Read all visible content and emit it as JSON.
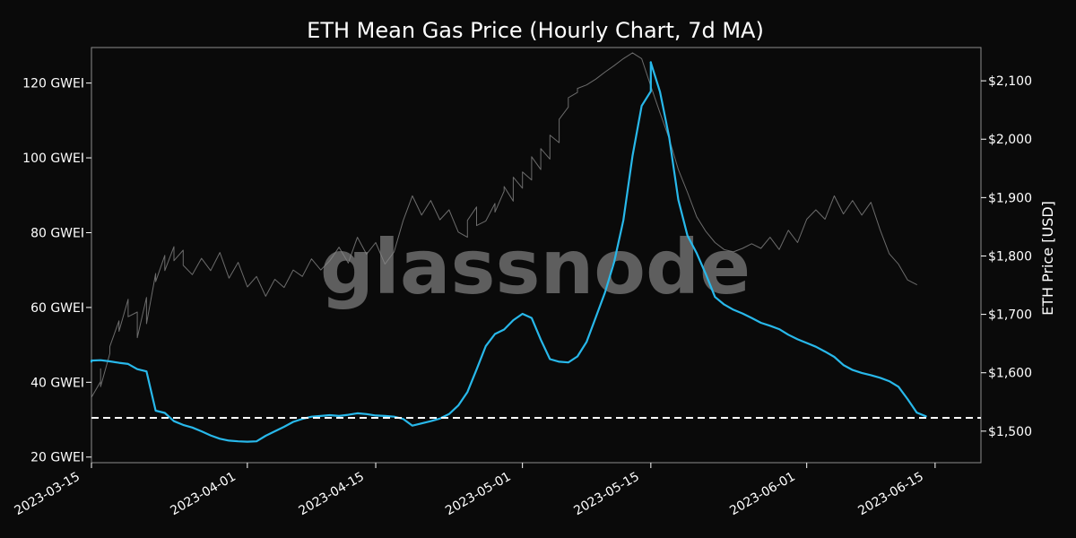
{
  "chart_data": {
    "type": "line",
    "title": "ETH Mean Gas Price (Hourly Chart, 7d MA)",
    "ylabel_right": "ETH Price [USD]",
    "watermark": "glassnode",
    "x_ticks": [
      "2023-03-15",
      "2023-04-01",
      "2023-04-15",
      "2023-05-01",
      "2023-05-15",
      "2023-06-01",
      "2023-06-15"
    ],
    "xlim": [
      "2023-03-15",
      "2023-06-20"
    ],
    "y_left": {
      "ticks": [
        "20 GWEI",
        "40 GWEI",
        "60 GWEI",
        "80 GWEI",
        "100 GWEI",
        "120 GWEI"
      ],
      "tick_values": [
        20,
        40,
        60,
        80,
        100,
        120
      ],
      "ylim": [
        18.5,
        129.5
      ],
      "unit": "GWEI"
    },
    "y_right": {
      "ticks": [
        "$1,500",
        "$1,600",
        "$1,700",
        "$1,800",
        "$1,900",
        "$2,000",
        "$2,100"
      ],
      "tick_values": [
        1500,
        1600,
        1700,
        1800,
        1900,
        2000,
        2100
      ],
      "ylim": [
        1446,
        2157
      ]
    },
    "reference_line": {
      "axis": "left",
      "value": 30.5,
      "style": "dashed",
      "color": "#ffffff"
    },
    "series": [
      {
        "axis": "right",
        "color": "#888888",
        "points": [
          [
            "2023-03-15",
            1540
          ],
          [
            "2023-03-15",
            1558
          ],
          [
            "2023-03-16",
            1585
          ],
          [
            "2023-03-16",
            1607
          ],
          [
            "2023-03-16",
            1576
          ],
          [
            "2023-03-17",
            1633
          ],
          [
            "2023-03-17",
            1645
          ],
          [
            "2023-03-18",
            1689
          ],
          [
            "2023-03-18",
            1671
          ],
          [
            "2023-03-19",
            1726
          ],
          [
            "2023-03-19",
            1696
          ],
          [
            "2023-03-20",
            1704
          ],
          [
            "2023-03-20",
            1660
          ],
          [
            "2023-03-21",
            1729
          ],
          [
            "2023-03-21",
            1684
          ],
          [
            "2023-03-22",
            1770
          ],
          [
            "2023-03-22",
            1756
          ],
          [
            "2023-03-23",
            1801
          ],
          [
            "2023-03-23",
            1775
          ],
          [
            "2023-03-24",
            1816
          ],
          [
            "2023-03-24",
            1792
          ],
          [
            "2023-03-25",
            1810
          ],
          [
            "2023-03-25",
            1784
          ],
          [
            "2023-03-26",
            1768
          ],
          [
            "2023-03-27",
            1796
          ],
          [
            "2023-03-28",
            1775
          ],
          [
            "2023-03-29",
            1806
          ],
          [
            "2023-03-30",
            1762
          ],
          [
            "2023-03-31",
            1789
          ],
          [
            "2023-04-01",
            1747
          ],
          [
            "2023-04-02",
            1765
          ],
          [
            "2023-04-03",
            1731
          ],
          [
            "2023-04-04",
            1760
          ],
          [
            "2023-04-05",
            1746
          ],
          [
            "2023-04-06",
            1776
          ],
          [
            "2023-04-07",
            1765
          ],
          [
            "2023-04-08",
            1795
          ],
          [
            "2023-04-09",
            1776
          ],
          [
            "2023-04-10",
            1792
          ],
          [
            "2023-04-11",
            1815
          ],
          [
            "2023-04-12",
            1788
          ],
          [
            "2023-04-13",
            1832
          ],
          [
            "2023-04-14",
            1803
          ],
          [
            "2023-04-15",
            1823
          ],
          [
            "2023-04-16",
            1786
          ],
          [
            "2023-04-17",
            1807
          ],
          [
            "2023-04-18",
            1861
          ],
          [
            "2023-04-19",
            1903
          ],
          [
            "2023-04-20",
            1870
          ],
          [
            "2023-04-21",
            1895
          ],
          [
            "2023-04-22",
            1862
          ],
          [
            "2023-04-23",
            1879
          ],
          [
            "2023-04-24",
            1841
          ],
          [
            "2023-04-25",
            1832
          ],
          [
            "2023-04-25",
            1861
          ],
          [
            "2023-04-26",
            1884
          ],
          [
            "2023-04-26",
            1852
          ],
          [
            "2023-04-27",
            1860
          ],
          [
            "2023-04-28",
            1890
          ],
          [
            "2023-04-28",
            1875
          ],
          [
            "2023-04-29",
            1911
          ],
          [
            "2023-04-29",
            1919
          ],
          [
            "2023-04-30",
            1894
          ],
          [
            "2023-04-30",
            1935
          ],
          [
            "2023-05-01",
            1916
          ],
          [
            "2023-05-01",
            1944
          ],
          [
            "2023-05-02",
            1930
          ],
          [
            "2023-05-02",
            1970
          ],
          [
            "2023-05-03",
            1948
          ],
          [
            "2023-05-03",
            1984
          ],
          [
            "2023-05-04",
            1966
          ],
          [
            "2023-05-04",
            2007
          ],
          [
            "2023-05-05",
            1994
          ],
          [
            "2023-05-05",
            2034
          ],
          [
            "2023-05-06",
            2055
          ],
          [
            "2023-05-06",
            2071
          ],
          [
            "2023-05-07",
            2080
          ],
          [
            "2023-05-07",
            2087
          ],
          [
            "2023-05-08",
            2093
          ],
          [
            "2023-05-09",
            2103
          ],
          [
            "2023-05-10",
            2115
          ],
          [
            "2023-05-11",
            2126
          ],
          [
            "2023-05-12",
            2138
          ],
          [
            "2023-05-13",
            2148
          ],
          [
            "2023-05-14",
            2138
          ],
          [
            "2023-05-15",
            2091
          ],
          [
            "2023-05-16",
            2045
          ],
          [
            "2023-05-17",
            2001
          ],
          [
            "2023-05-18",
            1948
          ],
          [
            "2023-05-19",
            1909
          ],
          [
            "2023-05-20",
            1867
          ],
          [
            "2023-05-21",
            1842
          ],
          [
            "2023-05-22",
            1823
          ],
          [
            "2023-05-23",
            1811
          ],
          [
            "2023-05-24",
            1807
          ],
          [
            "2023-05-25",
            1813
          ],
          [
            "2023-05-26",
            1821
          ],
          [
            "2023-05-27",
            1813
          ],
          [
            "2023-05-28",
            1832
          ],
          [
            "2023-05-29",
            1811
          ],
          [
            "2023-05-30",
            1844
          ],
          [
            "2023-05-31",
            1823
          ],
          [
            "2023-06-01",
            1863
          ],
          [
            "2023-06-02",
            1879
          ],
          [
            "2023-06-03",
            1863
          ],
          [
            "2023-06-04",
            1903
          ],
          [
            "2023-06-05",
            1872
          ],
          [
            "2023-06-06",
            1895
          ],
          [
            "2023-06-07",
            1870
          ],
          [
            "2023-06-08",
            1892
          ],
          [
            "2023-06-09",
            1845
          ],
          [
            "2023-06-10",
            1804
          ],
          [
            "2023-06-11",
            1786
          ],
          [
            "2023-06-12",
            1759
          ],
          [
            "2023-06-13",
            1751
          ]
        ]
      },
      {
        "axis": "left",
        "color": "#28b8ea",
        "points": [
          [
            "2023-03-15",
            45.5
          ],
          [
            "2023-03-15",
            45.8
          ],
          [
            "2023-03-16",
            45.9
          ],
          [
            "2023-03-17",
            45.6
          ],
          [
            "2023-03-18",
            45.2
          ],
          [
            "2023-03-19",
            44.9
          ],
          [
            "2023-03-20",
            43.5
          ],
          [
            "2023-03-21",
            42.9
          ],
          [
            "2023-03-22",
            32.4
          ],
          [
            "2023-03-23",
            31.8
          ],
          [
            "2023-03-24",
            29.6
          ],
          [
            "2023-03-25",
            28.6
          ],
          [
            "2023-03-26",
            27.9
          ],
          [
            "2023-03-27",
            26.9
          ],
          [
            "2023-03-28",
            25.8
          ],
          [
            "2023-03-29",
            24.9
          ],
          [
            "2023-03-30",
            24.4
          ],
          [
            "2023-03-31",
            24.2
          ],
          [
            "2023-04-01",
            24.1
          ],
          [
            "2023-04-02",
            24.2
          ],
          [
            "2023-04-03",
            25.7
          ],
          [
            "2023-04-04",
            26.9
          ],
          [
            "2023-04-05",
            28.1
          ],
          [
            "2023-04-06",
            29.4
          ],
          [
            "2023-04-07",
            30.2
          ],
          [
            "2023-04-08",
            30.8
          ],
          [
            "2023-04-09",
            31.0
          ],
          [
            "2023-04-10",
            31.2
          ],
          [
            "2023-04-11",
            31.0
          ],
          [
            "2023-04-12",
            31.3
          ],
          [
            "2023-04-13",
            31.7
          ],
          [
            "2023-04-14",
            31.5
          ],
          [
            "2023-04-15",
            31.1
          ],
          [
            "2023-04-16",
            31.0
          ],
          [
            "2023-04-17",
            30.8
          ],
          [
            "2023-04-18",
            30.2
          ],
          [
            "2023-04-19",
            28.4
          ],
          [
            "2023-04-20",
            29.0
          ],
          [
            "2023-04-21",
            29.6
          ],
          [
            "2023-04-22",
            30.3
          ],
          [
            "2023-04-23",
            31.5
          ],
          [
            "2023-04-24",
            33.8
          ],
          [
            "2023-04-25",
            37.4
          ],
          [
            "2023-04-26",
            43.4
          ],
          [
            "2023-04-27",
            49.7
          ],
          [
            "2023-04-28",
            52.9
          ],
          [
            "2023-04-29",
            54.1
          ],
          [
            "2023-04-30",
            56.6
          ],
          [
            "2023-05-01",
            58.3
          ],
          [
            "2023-05-02",
            57.2
          ],
          [
            "2023-05-03",
            51.4
          ],
          [
            "2023-05-04",
            46.2
          ],
          [
            "2023-05-05",
            45.5
          ],
          [
            "2023-05-06",
            45.3
          ],
          [
            "2023-05-07",
            46.9
          ],
          [
            "2023-05-08",
            50.8
          ],
          [
            "2023-05-09",
            57.4
          ],
          [
            "2023-05-10",
            64.0
          ],
          [
            "2023-05-11",
            72.1
          ],
          [
            "2023-05-12",
            83.3
          ],
          [
            "2023-05-13",
            100.5
          ],
          [
            "2023-05-14",
            113.9
          ],
          [
            "2023-05-15",
            117.8
          ],
          [
            "2023-05-15",
            125.6
          ]
        ]
      },
      {
        "axis": "left",
        "color": "#28b8ea",
        "points": [
          [
            "2023-05-15",
            125.5
          ],
          [
            "2023-05-16",
            117.6
          ],
          [
            "2023-05-17",
            105.5
          ],
          [
            "2023-05-18",
            88.8
          ],
          [
            "2023-05-19",
            79.2
          ],
          [
            "2023-05-20",
            74.5
          ],
          [
            "2023-05-21",
            68.9
          ],
          [
            "2023-05-22",
            62.8
          ],
          [
            "2023-05-23",
            60.8
          ],
          [
            "2023-05-24",
            59.4
          ],
          [
            "2023-05-25",
            58.4
          ],
          [
            "2023-05-26",
            57.2
          ],
          [
            "2023-05-27",
            55.9
          ],
          [
            "2023-05-28",
            55.1
          ],
          [
            "2023-05-29",
            54.2
          ],
          [
            "2023-05-30",
            52.7
          ],
          [
            "2023-05-31",
            51.5
          ],
          [
            "2023-06-01",
            50.5
          ],
          [
            "2023-06-02",
            49.5
          ],
          [
            "2023-06-03",
            48.2
          ],
          [
            "2023-06-04",
            46.8
          ],
          [
            "2023-06-05",
            44.6
          ],
          [
            "2023-06-06",
            43.3
          ],
          [
            "2023-06-07",
            42.5
          ],
          [
            "2023-06-08",
            41.9
          ],
          [
            "2023-06-09",
            41.2
          ],
          [
            "2023-06-10",
            40.3
          ],
          [
            "2023-06-11",
            38.8
          ],
          [
            "2023-06-12",
            35.5
          ],
          [
            "2023-06-13",
            31.9
          ],
          [
            "2023-06-14",
            30.9
          ]
        ]
      }
    ]
  }
}
